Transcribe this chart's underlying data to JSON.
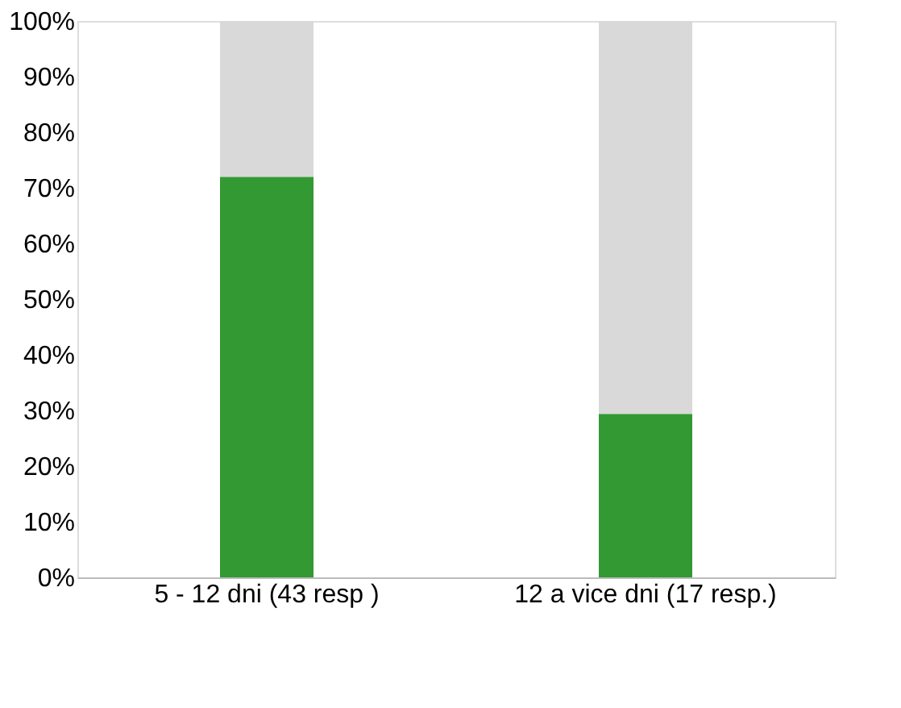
{
  "chart_data": {
    "type": "bar",
    "stacked": true,
    "categories": [
      "5 - 12 dni (43 resp )",
      "12 a vice dni (17 resp.)"
    ],
    "series": [
      {
        "color": "#339933",
        "values": [
          72,
          29.4
        ]
      },
      {
        "color": "#d9d9d9",
        "values": [
          28,
          70.6
        ]
      }
    ],
    "ylim": [
      0,
      100
    ],
    "yticks": [
      {
        "value": 0,
        "label": "0%"
      },
      {
        "value": 10,
        "label": "10%"
      },
      {
        "value": 20,
        "label": "20%"
      },
      {
        "value": 30,
        "label": "30%"
      },
      {
        "value": 40,
        "label": "40%"
      },
      {
        "value": 50,
        "label": "50%"
      },
      {
        "value": 60,
        "label": "60%"
      },
      {
        "value": 70,
        "label": "70%"
      },
      {
        "value": 80,
        "label": "80%"
      },
      {
        "value": 90,
        "label": "90%"
      },
      {
        "value": 100,
        "label": "100%"
      }
    ],
    "grid": false,
    "legend": false
  }
}
